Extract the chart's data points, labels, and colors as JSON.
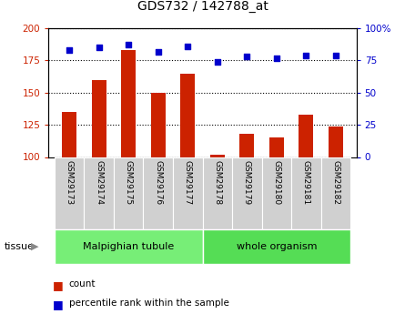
{
  "title": "GDS732 / 142788_at",
  "samples": [
    "GSM29173",
    "GSM29174",
    "GSM29175",
    "GSM29176",
    "GSM29177",
    "GSM29178",
    "GSM29179",
    "GSM29180",
    "GSM29181",
    "GSM29182"
  ],
  "count": [
    135,
    160,
    183,
    150,
    165,
    102,
    118,
    115,
    133,
    124
  ],
  "percentile": [
    83,
    85,
    87,
    82,
    86,
    74,
    78,
    77,
    79,
    79
  ],
  "ylim_left": [
    100,
    200
  ],
  "ylim_right": [
    0,
    100
  ],
  "yticks_left": [
    100,
    125,
    150,
    175,
    200
  ],
  "yticks_right": [
    0,
    25,
    50,
    75,
    100
  ],
  "bar_color": "#cc2200",
  "dot_color": "#0000cc",
  "label_bg": "#d0d0d0",
  "tissue_groups": [
    {
      "label": "Malpighian tubule",
      "start": 0,
      "end": 5,
      "color": "#77ee77"
    },
    {
      "label": "whole organism",
      "start": 5,
      "end": 10,
      "color": "#55dd55"
    }
  ],
  "tissue_label": "tissue",
  "legend_count": "count",
  "legend_percentile": "percentile rank within the sample",
  "plot_bg": "#ffffff",
  "grid_color": "#000000"
}
